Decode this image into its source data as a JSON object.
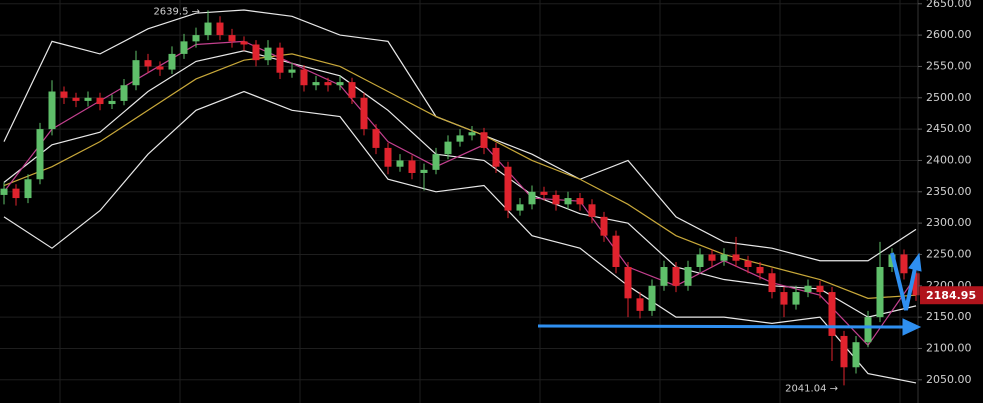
{
  "chart_data": {
    "type": "candlestick",
    "ylim": [
      2013,
      2656
    ],
    "yticks": [
      {
        "value": 2050,
        "label": "2050.00"
      },
      {
        "value": 2100,
        "label": "2100.00"
      },
      {
        "value": 2150,
        "label": "2150.00"
      },
      {
        "value": 2200,
        "label": "2200.00"
      },
      {
        "value": 2250,
        "label": "2250.00"
      },
      {
        "value": 2300,
        "label": "2300.00"
      },
      {
        "value": 2350,
        "label": "2350.00"
      },
      {
        "value": 2400,
        "label": "2400.00"
      },
      {
        "value": 2450,
        "label": "2450.00"
      },
      {
        "value": 2500,
        "label": "2500.00"
      },
      {
        "value": 2550,
        "label": "2550.00"
      },
      {
        "value": 2600,
        "label": "2600.00"
      },
      {
        "value": 2650,
        "label": "2650.00"
      }
    ],
    "grid": true,
    "up_color": "#5fbf6a",
    "down_color": "#e0232e",
    "candles": [
      [
        2345,
        2365,
        2330,
        2355
      ],
      [
        2355,
        2362,
        2328,
        2340
      ],
      [
        2340,
        2378,
        2332,
        2370
      ],
      [
        2370,
        2460,
        2362,
        2450
      ],
      [
        2450,
        2528,
        2440,
        2510
      ],
      [
        2510,
        2518,
        2490,
        2500
      ],
      [
        2500,
        2508,
        2485,
        2495
      ],
      [
        2495,
        2510,
        2486,
        2500
      ],
      [
        2500,
        2508,
        2480,
        2490
      ],
      [
        2490,
        2505,
        2482,
        2495
      ],
      [
        2495,
        2530,
        2488,
        2520
      ],
      [
        2520,
        2575,
        2512,
        2560
      ],
      [
        2560,
        2570,
        2540,
        2550
      ],
      [
        2550,
        2558,
        2535,
        2545
      ],
      [
        2545,
        2582,
        2538,
        2570
      ],
      [
        2570,
        2602,
        2562,
        2590
      ],
      [
        2590,
        2612,
        2580,
        2600
      ],
      [
        2600,
        2639.5,
        2592,
        2620
      ],
      [
        2620,
        2630,
        2592,
        2600
      ],
      [
        2600,
        2610,
        2580,
        2590
      ],
      [
        2590,
        2598,
        2575,
        2585
      ],
      [
        2585,
        2592,
        2550,
        2560
      ],
      [
        2560,
        2592,
        2552,
        2580
      ],
      [
        2580,
        2588,
        2530,
        2540
      ],
      [
        2540,
        2556,
        2532,
        2545
      ],
      [
        2545,
        2552,
        2510,
        2520
      ],
      [
        2520,
        2535,
        2512,
        2525
      ],
      [
        2525,
        2532,
        2510,
        2520
      ],
      [
        2520,
        2535,
        2512,
        2525
      ],
      [
        2525,
        2532,
        2490,
        2500
      ],
      [
        2500,
        2508,
        2440,
        2450
      ],
      [
        2450,
        2458,
        2410,
        2420
      ],
      [
        2420,
        2428,
        2378,
        2390
      ],
      [
        2390,
        2410,
        2382,
        2400
      ],
      [
        2400,
        2408,
        2370,
        2380
      ],
      [
        2380,
        2395,
        2352,
        2385
      ],
      [
        2385,
        2420,
        2378,
        2410
      ],
      [
        2410,
        2440,
        2402,
        2430
      ],
      [
        2430,
        2450,
        2422,
        2440
      ],
      [
        2440,
        2455,
        2432,
        2445
      ],
      [
        2445,
        2452,
        2410,
        2420
      ],
      [
        2420,
        2428,
        2380,
        2390
      ],
      [
        2390,
        2398,
        2308,
        2320
      ],
      [
        2320,
        2340,
        2312,
        2330
      ],
      [
        2330,
        2360,
        2322,
        2350
      ],
      [
        2350,
        2358,
        2336,
        2345
      ],
      [
        2345,
        2352,
        2320,
        2330
      ],
      [
        2330,
        2350,
        2322,
        2340
      ],
      [
        2340,
        2348,
        2320,
        2330
      ],
      [
        2330,
        2338,
        2300,
        2310
      ],
      [
        2310,
        2318,
        2270,
        2280
      ],
      [
        2280,
        2288,
        2220,
        2230
      ],
      [
        2230,
        2238,
        2150,
        2180
      ],
      [
        2180,
        2190,
        2148,
        2160
      ],
      [
        2160,
        2210,
        2152,
        2200
      ],
      [
        2200,
        2240,
        2192,
        2230
      ],
      [
        2230,
        2238,
        2190,
        2200
      ],
      [
        2200,
        2240,
        2192,
        2230
      ],
      [
        2230,
        2260,
        2222,
        2250
      ],
      [
        2250,
        2258,
        2230,
        2240
      ],
      [
        2240,
        2260,
        2232,
        2250
      ],
      [
        2250,
        2278,
        2230,
        2240
      ],
      [
        2240,
        2248,
        2220,
        2230
      ],
      [
        2230,
        2238,
        2210,
        2220
      ],
      [
        2220,
        2228,
        2180,
        2190
      ],
      [
        2190,
        2198,
        2150,
        2170
      ],
      [
        2170,
        2200,
        2162,
        2190
      ],
      [
        2190,
        2210,
        2182,
        2200
      ],
      [
        2200,
        2208,
        2180,
        2190
      ],
      [
        2190,
        2198,
        2080,
        2120
      ],
      [
        2120,
        2128,
        2041.04,
        2070
      ],
      [
        2070,
        2120,
        2060,
        2110
      ],
      [
        2110,
        2160,
        2102,
        2150
      ],
      [
        2150,
        2270,
        2142,
        2230
      ],
      [
        2230,
        2260,
        2222,
        2250
      ],
      [
        2250,
        2258,
        2210,
        2220
      ],
      [
        2220,
        2228,
        2176,
        2184.95
      ]
    ],
    "line_index": [
      0,
      4,
      8,
      12,
      16,
      20,
      24,
      28,
      32,
      36,
      40,
      44,
      48,
      52,
      56,
      60,
      64,
      68,
      72,
      76
    ],
    "lines": [
      {
        "color": "#e8e8e8",
        "values": [
          2430,
          2590,
          2570,
          2610,
          2635,
          2640,
          2630,
          2600,
          2590,
          2470,
          2440,
          2410,
          2370,
          2400,
          2310,
          2270,
          2260,
          2240,
          2240,
          2290
        ]
      },
      {
        "color": "#e8e8e8",
        "values": [
          2365,
          2425,
          2445,
          2510,
          2558,
          2575,
          2555,
          2535,
          2480,
          2410,
          2400,
          2345,
          2315,
          2300,
          2230,
          2210,
          2200,
          2195,
          2150,
          2168
        ]
      },
      {
        "color": "#e8e8e8",
        "values": [
          2310,
          2260,
          2320,
          2410,
          2480,
          2510,
          2480,
          2470,
          2370,
          2350,
          2360,
          2280,
          2260,
          2200,
          2150,
          2150,
          2140,
          2150,
          2060,
          2045
        ]
      },
      {
        "color": "#c8a83a",
        "values": [
          2360,
          2390,
          2430,
          2480,
          2530,
          2560,
          2570,
          2550,
          2510,
          2470,
          2440,
          2400,
          2370,
          2330,
          2280,
          2250,
          2230,
          2210,
          2180,
          2185
        ]
      },
      {
        "color": "#c2408e",
        "values": [
          2350,
          2450,
          2495,
          2540,
          2585,
          2590,
          2555,
          2520,
          2430,
          2390,
          2425,
          2340,
          2335,
          2230,
          2200,
          2240,
          2205,
          2185,
          2105,
          2215
        ]
      }
    ],
    "annotations": [
      "2639.5 →",
      "2041.04 →"
    ]
  }
}
